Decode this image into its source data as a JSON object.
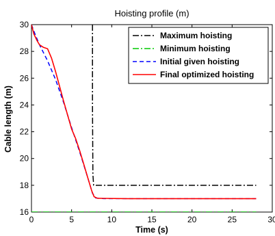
{
  "chart_data": {
    "type": "line",
    "title": "Hoisting profile (m)",
    "xlabel": "Time (s)",
    "ylabel": "Cable length (m)",
    "xlim": [
      0,
      30
    ],
    "ylim": [
      16,
      30
    ],
    "xticks": [
      "0",
      "5",
      "10",
      "15",
      "20",
      "25",
      "30"
    ],
    "yticks": [
      "16",
      "18",
      "20",
      "22",
      "24",
      "26",
      "28",
      "30"
    ],
    "grid": false,
    "legend_position": "top-right",
    "series": [
      {
        "name": "Maximum hoisting",
        "color": "#000000",
        "style": "dashdot",
        "x": [
          7.6,
          7.6,
          7.65,
          7.75,
          28
        ],
        "y": [
          30,
          24,
          18.8,
          18,
          18
        ]
      },
      {
        "name": "Minimum hoisting",
        "color": "#00c800",
        "style": "dashdot",
        "x": [
          0,
          28
        ],
        "y": [
          16,
          16
        ]
      },
      {
        "name": "Initial given hoisting",
        "color": "#0000ff",
        "style": "dashed",
        "x": [
          0,
          0.5,
          1,
          2,
          3,
          4,
          5,
          6,
          7,
          7.6,
          8,
          9,
          12,
          28
        ],
        "y": [
          30,
          29.2,
          28.5,
          27.3,
          25.9,
          24.2,
          22.3,
          20.5,
          18.6,
          17.4,
          17.05,
          17,
          17,
          17
        ]
      },
      {
        "name": "Final optimized hoisting",
        "color": "#ff0000",
        "style": "solid",
        "x": [
          0,
          0.3,
          0.7,
          1,
          1.5,
          2,
          2.5,
          3,
          4,
          5,
          5.5,
          6,
          6.5,
          7,
          7.5,
          7.8,
          8.2,
          9,
          12,
          28
        ],
        "y": [
          30,
          29.3,
          28.8,
          28.5,
          28.3,
          28.2,
          27.5,
          26.5,
          24.3,
          22.2,
          21.5,
          20.6,
          19.6,
          18.6,
          17.6,
          17.15,
          17.03,
          17.02,
          17,
          17
        ]
      }
    ]
  }
}
